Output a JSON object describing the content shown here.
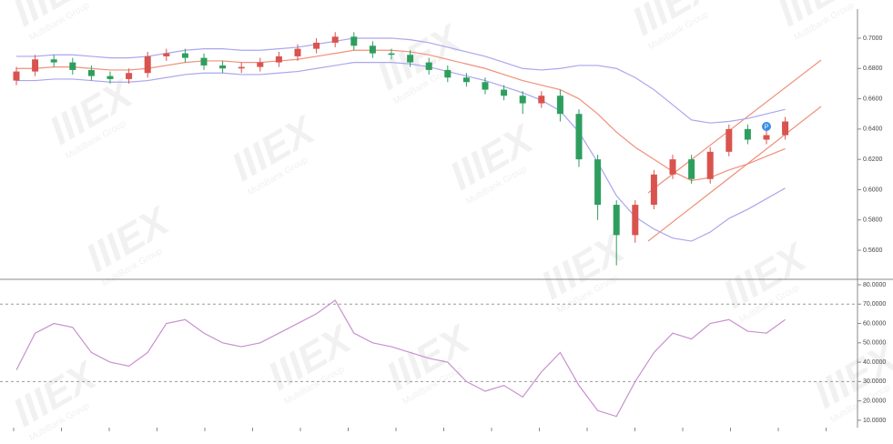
{
  "watermark": {
    "logo": "IIIEX",
    "text": "MultiBank Group"
  },
  "chart_data": [
    {
      "type": "candlestick",
      "open": [
        0.672,
        0.678,
        0.686,
        0.684,
        0.679,
        0.675,
        0.673,
        0.677,
        0.688,
        0.69,
        0.687,
        0.682,
        0.68,
        0.681,
        0.684,
        0.688,
        0.693,
        0.697,
        0.701,
        0.695,
        0.69,
        0.689,
        0.684,
        0.679,
        0.674,
        0.671,
        0.666,
        0.662,
        0.657,
        0.662,
        0.65,
        0.62,
        0.59,
        0.57,
        0.59,
        0.61,
        0.62,
        0.607,
        0.625,
        0.64,
        0.633,
        0.636
      ],
      "high": [
        0.681,
        0.689,
        0.689,
        0.687,
        0.682,
        0.678,
        0.68,
        0.691,
        0.693,
        0.693,
        0.69,
        0.685,
        0.684,
        0.687,
        0.691,
        0.696,
        0.7,
        0.704,
        0.704,
        0.698,
        0.693,
        0.692,
        0.687,
        0.682,
        0.677,
        0.674,
        0.669,
        0.665,
        0.665,
        0.666,
        0.653,
        0.623,
        0.593,
        0.593,
        0.613,
        0.623,
        0.623,
        0.628,
        0.643,
        0.643,
        0.639,
        0.648
      ],
      "low": [
        0.669,
        0.675,
        0.681,
        0.676,
        0.672,
        0.67,
        0.67,
        0.674,
        0.685,
        0.684,
        0.679,
        0.677,
        0.677,
        0.678,
        0.681,
        0.685,
        0.69,
        0.694,
        0.692,
        0.687,
        0.686,
        0.681,
        0.676,
        0.671,
        0.668,
        0.663,
        0.659,
        0.65,
        0.654,
        0.645,
        0.615,
        0.58,
        0.55,
        0.565,
        0.587,
        0.607,
        0.604,
        0.604,
        0.622,
        0.63,
        0.63,
        0.633
      ],
      "close": [
        0.678,
        0.686,
        0.684,
        0.679,
        0.675,
        0.673,
        0.677,
        0.688,
        0.69,
        0.687,
        0.682,
        0.68,
        0.681,
        0.684,
        0.688,
        0.693,
        0.697,
        0.701,
        0.695,
        0.69,
        0.689,
        0.684,
        0.679,
        0.674,
        0.671,
        0.666,
        0.662,
        0.657,
        0.662,
        0.65,
        0.62,
        0.59,
        0.57,
        0.59,
        0.61,
        0.62,
        0.607,
        0.625,
        0.64,
        0.633,
        0.636,
        0.645
      ],
      "up_color": "#d9534f",
      "down_color": "#2e9e5e",
      "series": [
        {
          "color": "#aaa6ee",
          "values": [
            0.688,
            0.688,
            0.689,
            0.689,
            0.688,
            0.687,
            0.687,
            0.688,
            0.69,
            0.692,
            0.693,
            0.693,
            0.692,
            0.692,
            0.693,
            0.694,
            0.696,
            0.698,
            0.7,
            0.7,
            0.7,
            0.699,
            0.697,
            0.694,
            0.691,
            0.688,
            0.684,
            0.68,
            0.679,
            0.68,
            0.682,
            0.682,
            0.68,
            0.674,
            0.666,
            0.656,
            0.646,
            0.644,
            0.645,
            0.647,
            0.65,
            0.653
          ]
        },
        {
          "color": "#f0907a",
          "values": [
            0.68,
            0.68,
            0.681,
            0.681,
            0.68,
            0.679,
            0.679,
            0.68,
            0.682,
            0.684,
            0.685,
            0.685,
            0.684,
            0.684,
            0.685,
            0.686,
            0.688,
            0.69,
            0.692,
            0.692,
            0.692,
            0.691,
            0.689,
            0.686,
            0.683,
            0.68,
            0.676,
            0.672,
            0.669,
            0.666,
            0.66,
            0.65,
            0.638,
            0.628,
            0.62,
            0.612,
            0.606,
            0.608,
            0.613,
            0.617,
            0.622,
            0.627
          ]
        },
        {
          "color": "#aaa6ee",
          "values": [
            0.672,
            0.672,
            0.673,
            0.673,
            0.672,
            0.671,
            0.671,
            0.672,
            0.674,
            0.676,
            0.677,
            0.677,
            0.676,
            0.676,
            0.677,
            0.678,
            0.68,
            0.682,
            0.684,
            0.684,
            0.684,
            0.683,
            0.681,
            0.678,
            0.675,
            0.672,
            0.668,
            0.664,
            0.659,
            0.652,
            0.638,
            0.618,
            0.596,
            0.582,
            0.574,
            0.568,
            0.566,
            0.572,
            0.581,
            0.587,
            0.594,
            0.601
          ]
        }
      ],
      "ylim": [
        0.542,
        0.7192
      ],
      "yticks": [
        {
          "value": 0.56,
          "label": "0.5600"
        },
        {
          "value": 0.58,
          "label": "0.5800"
        },
        {
          "value": 0.6,
          "label": "0.6000"
        },
        {
          "value": 0.62,
          "label": "0.6200"
        },
        {
          "value": 0.64,
          "label": "0.6400"
        },
        {
          "value": 0.66,
          "label": "0.6600"
        },
        {
          "value": 0.68,
          "label": "0.6800"
        },
        {
          "value": 0.7,
          "label": "0.7000"
        }
      ],
      "marker_label": "P"
    },
    {
      "type": "line",
      "series": [
        {
          "color": "#c98fd0",
          "values": [
            36,
            55,
            60,
            58,
            45,
            40,
            38,
            45,
            60,
            62,
            55,
            50,
            48,
            50,
            55,
            60,
            65,
            72,
            55,
            50,
            48,
            45,
            42,
            40,
            30,
            25,
            28,
            22,
            35,
            45,
            28,
            15,
            12,
            30,
            45,
            55,
            52,
            60,
            62,
            56,
            55,
            62
          ]
        }
      ],
      "ylim": [
        6.2,
        81.4
      ],
      "yticks": [
        {
          "value": 10,
          "label": "10.0000"
        },
        {
          "value": 20,
          "label": "20.0000"
        },
        {
          "value": 30,
          "label": "30.0000"
        },
        {
          "value": 40,
          "label": "40.0000"
        },
        {
          "value": 50,
          "label": "50.0000"
        },
        {
          "value": 60,
          "label": "60.0000"
        },
        {
          "value": 70,
          "label": "70.0000"
        },
        {
          "value": 80,
          "label": "80.0000"
        }
      ],
      "ref_lines": [
        70,
        30
      ]
    }
  ]
}
